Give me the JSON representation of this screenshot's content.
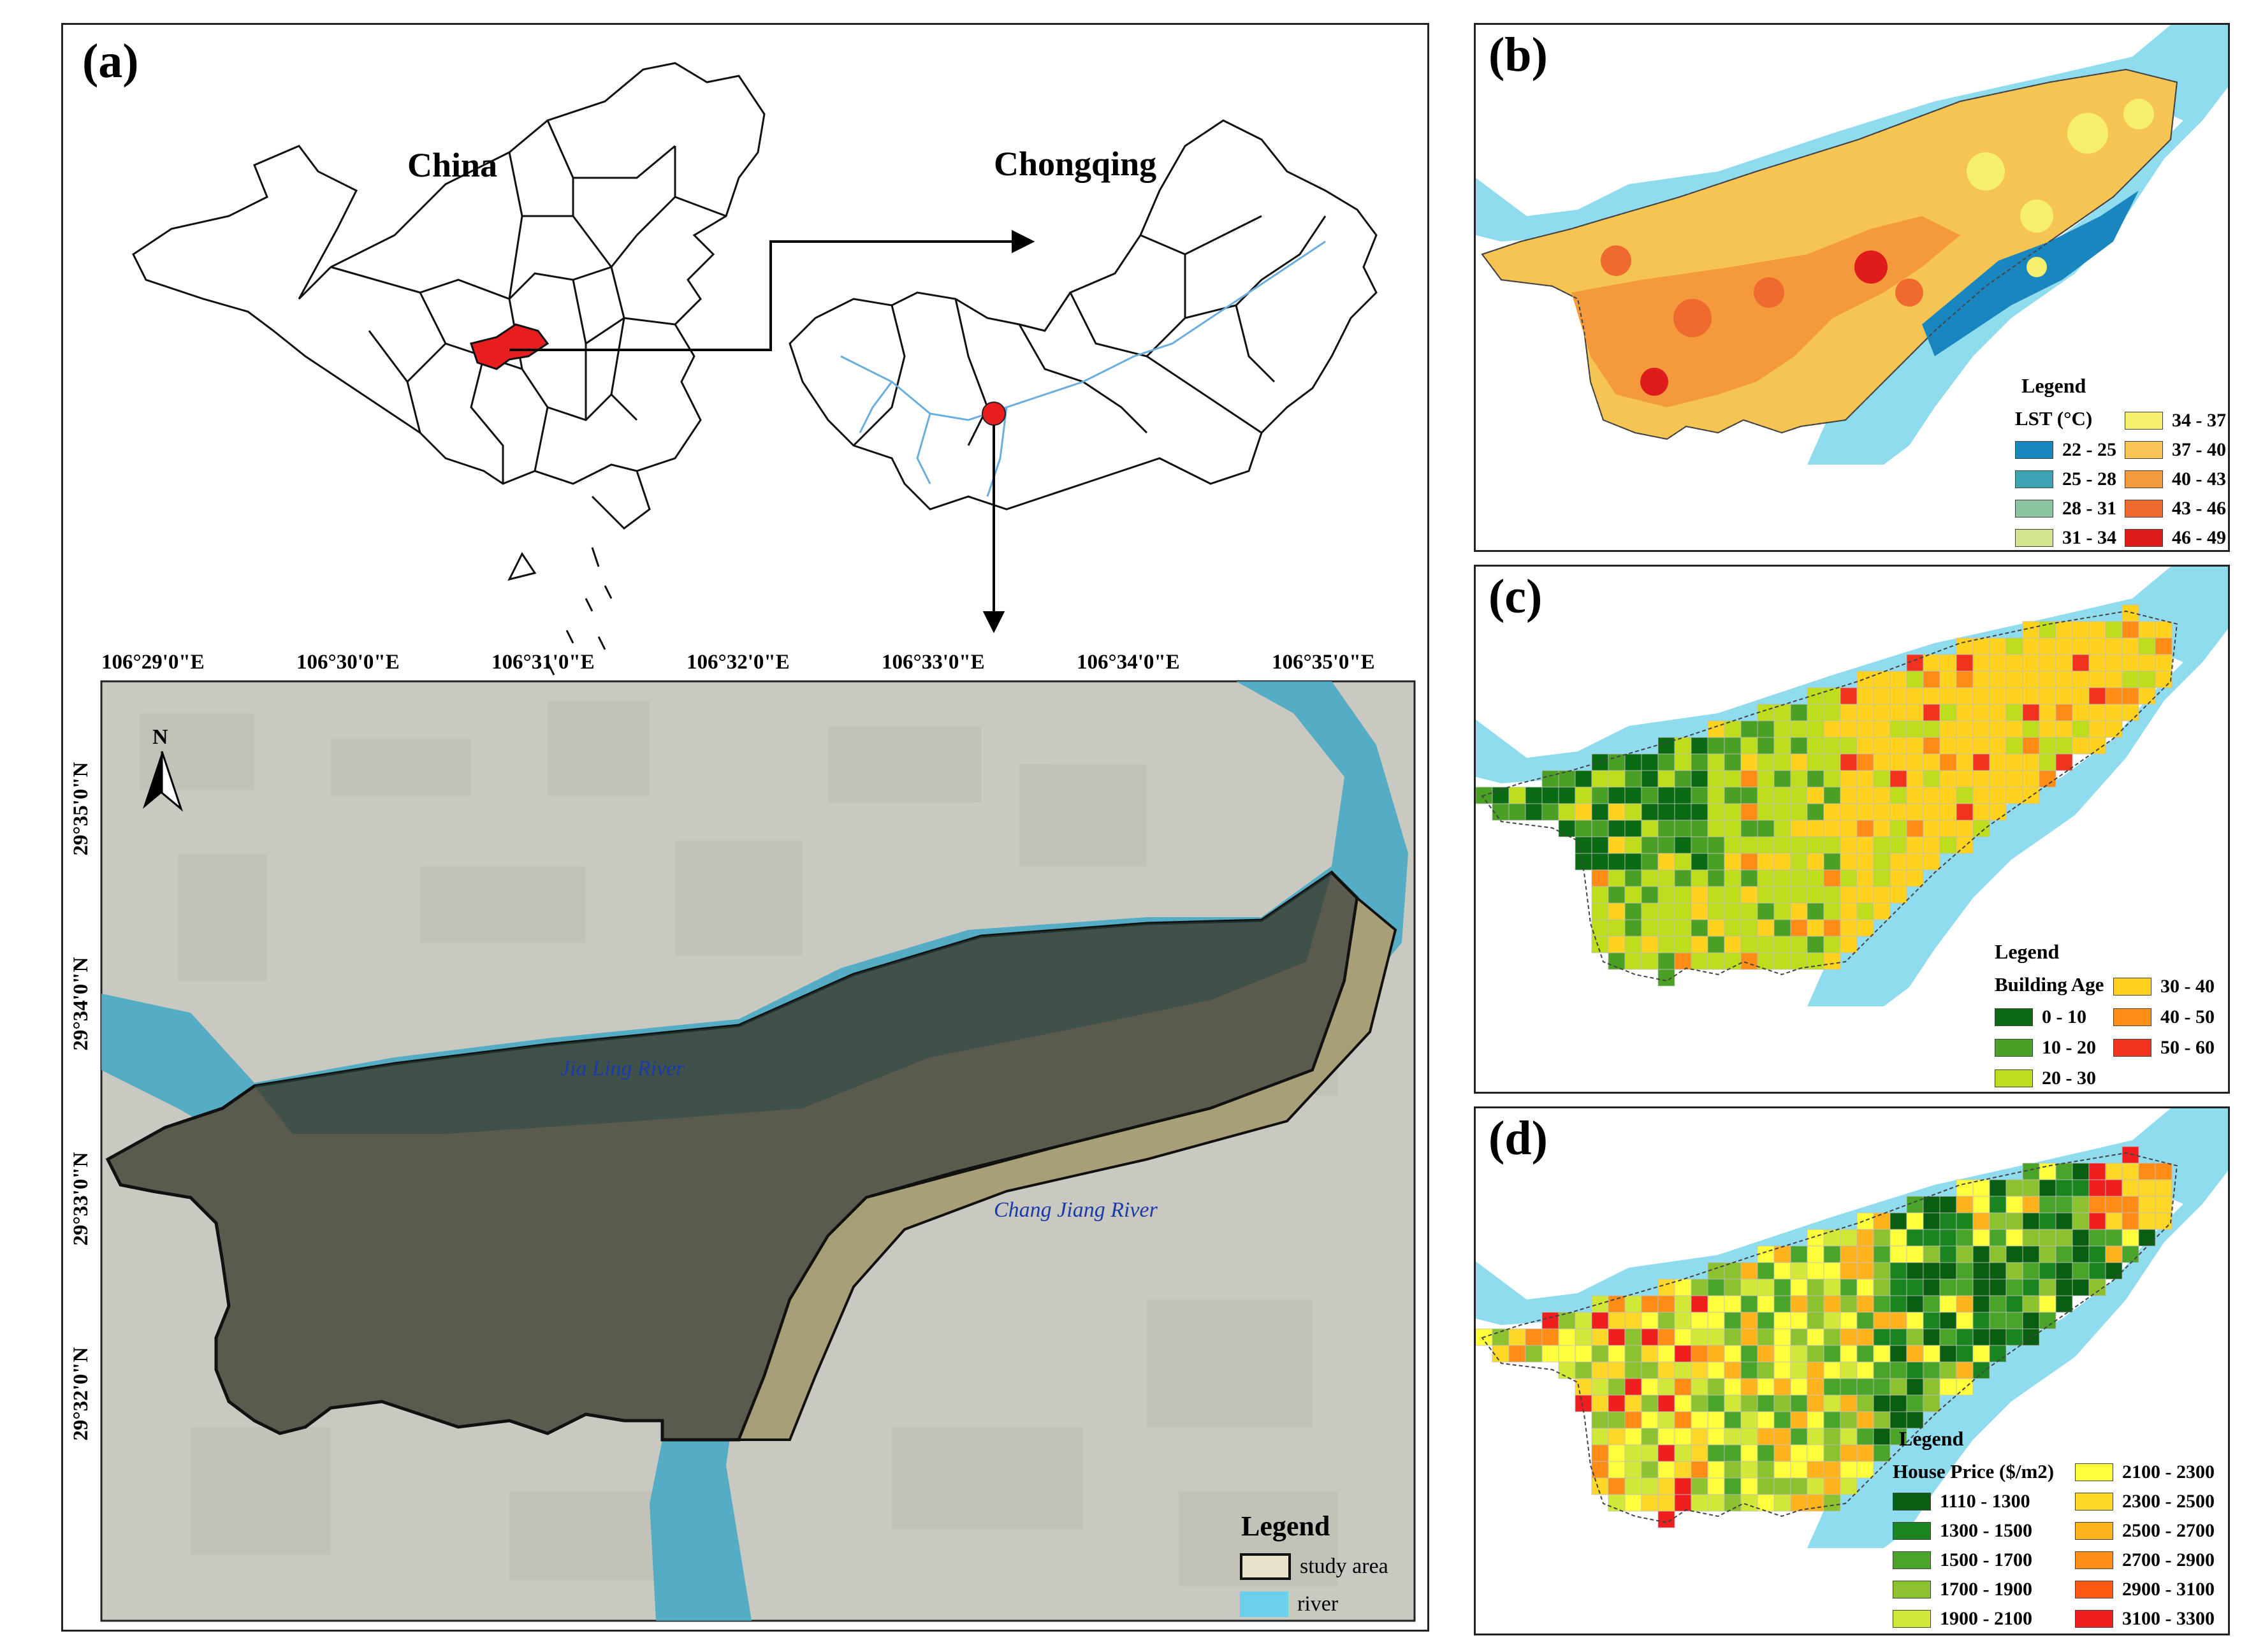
{
  "panels": {
    "a": {
      "label": "(a)",
      "china_label": "China",
      "chongqing_label": "Chongqing",
      "north_label": "N",
      "lon_ticks": [
        "106°29'0\"E",
        "106°30'0\"E",
        "106°31'0\"E",
        "106°32'0\"E",
        "106°33'0\"E",
        "106°34'0\"E",
        "106°35'0\"E"
      ],
      "lat_ticks": [
        "29°35'0\"N",
        "29°34'0\"N",
        "29°33'0\"N",
        "29°32'0\"N"
      ],
      "river_labels": [
        "Jia Ling River",
        "Chang Jiang River"
      ],
      "legend": {
        "title": "Legend",
        "items": [
          {
            "label": "study area",
            "color": "#e8e2cc"
          },
          {
            "label": "river",
            "color": "#6ad0ec"
          }
        ]
      }
    },
    "b": {
      "label": "(b)",
      "legend_title": "Legend",
      "legend_sub": "LST (°C)",
      "classes": [
        {
          "label": "22 - 25",
          "color": "#1a86c0"
        },
        {
          "label": "25 - 28",
          "color": "#3fa3b4"
        },
        {
          "label": "28 - 31",
          "color": "#8cc4a0"
        },
        {
          "label": "31 - 34",
          "color": "#d2e48c"
        },
        {
          "label": "34 - 37",
          "color": "#f6ef6e"
        },
        {
          "label": "37 - 40",
          "color": "#f8c453"
        },
        {
          "label": "40 - 43",
          "color": "#f49a3c"
        },
        {
          "label": "43 - 46",
          "color": "#ef6a2e"
        },
        {
          "label": "46 - 49",
          "color": "#e01b1b"
        }
      ]
    },
    "c": {
      "label": "(c)",
      "legend_title": "Legend",
      "legend_sub": "Building Age",
      "classes": [
        {
          "label": "0 - 10",
          "color": "#0a6b14"
        },
        {
          "label": "10 - 20",
          "color": "#4aa024"
        },
        {
          "label": "20 - 30",
          "color": "#bedd1c"
        },
        {
          "label": "30 - 40",
          "color": "#ffd21e"
        },
        {
          "label": "40 - 50",
          "color": "#ff8c14"
        },
        {
          "label": "50 - 60",
          "color": "#f0321e"
        }
      ]
    },
    "d": {
      "label": "(d)",
      "legend_title": "Legend",
      "legend_sub": "House Price ($/m2)",
      "classes": [
        {
          "label": "1110 - 1300",
          "color": "#0a5e12"
        },
        {
          "label": "1300 - 1500",
          "color": "#1a8420"
        },
        {
          "label": "1500 - 1700",
          "color": "#4aa42a"
        },
        {
          "label": "1700 - 1900",
          "color": "#8cc230"
        },
        {
          "label": "1900 - 2100",
          "color": "#d2e838"
        },
        {
          "label": "2100 - 2300",
          "color": "#ffff3c"
        },
        {
          "label": "2300 - 2500",
          "color": "#ffd728"
        },
        {
          "label": "2500 - 2700",
          "color": "#ffb41e"
        },
        {
          "label": "2700 - 2900",
          "color": "#ff8c14"
        },
        {
          "label": "2900 - 3100",
          "color": "#ff5a14"
        },
        {
          "label": "3100 - 3300",
          "color": "#f01e1e"
        }
      ]
    }
  },
  "colors": {
    "river": "#6ad0ec",
    "river_on_satellite": "#4aaac4",
    "study_area_outline": "#111111",
    "satellite_background": "#c9c9c1",
    "chongqing_highlight": "#e81e1e"
  }
}
